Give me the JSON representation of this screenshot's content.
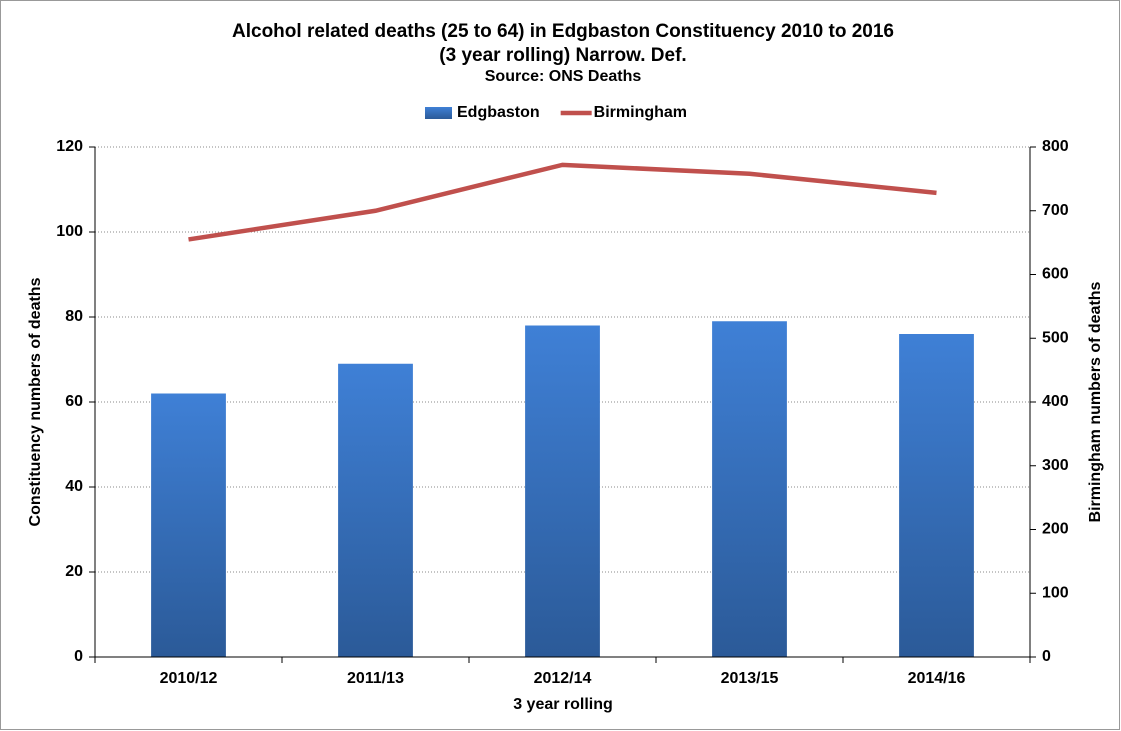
{
  "chart_data": {
    "type": "bar",
    "title": [
      "Alcohol related deaths (25 to 64) in Edgbaston Constituency 2010 to 2016",
      "(3 year rolling) Narrow. Def."
    ],
    "subtitle": "Source: ONS Deaths",
    "x_label": "3 year rolling",
    "y_label": "Constituency numbers of deaths",
    "y2_label": "Birmingham numbers of deaths",
    "categories": [
      "2010/12",
      "2011/13",
      "2012/14",
      "2013/15",
      "2014/16"
    ],
    "series": [
      {
        "name": "Edgbaston",
        "type": "bar",
        "color": "#3a76c6",
        "values": [
          62,
          69,
          78,
          79,
          76
        ]
      },
      {
        "name": "Birmingham",
        "type": "line",
        "axis": "y2",
        "color": "#c0504d",
        "values": [
          655,
          700,
          772,
          758,
          728
        ]
      }
    ],
    "ylim": [
      0,
      120
    ],
    "yticks": [
      0,
      20,
      40,
      60,
      80,
      100,
      120
    ],
    "y2lim": [
      0,
      800
    ],
    "y2ticks": [
      0,
      100,
      200,
      300,
      400,
      500,
      600,
      700,
      800
    ],
    "grid": true,
    "legend": "top"
  }
}
